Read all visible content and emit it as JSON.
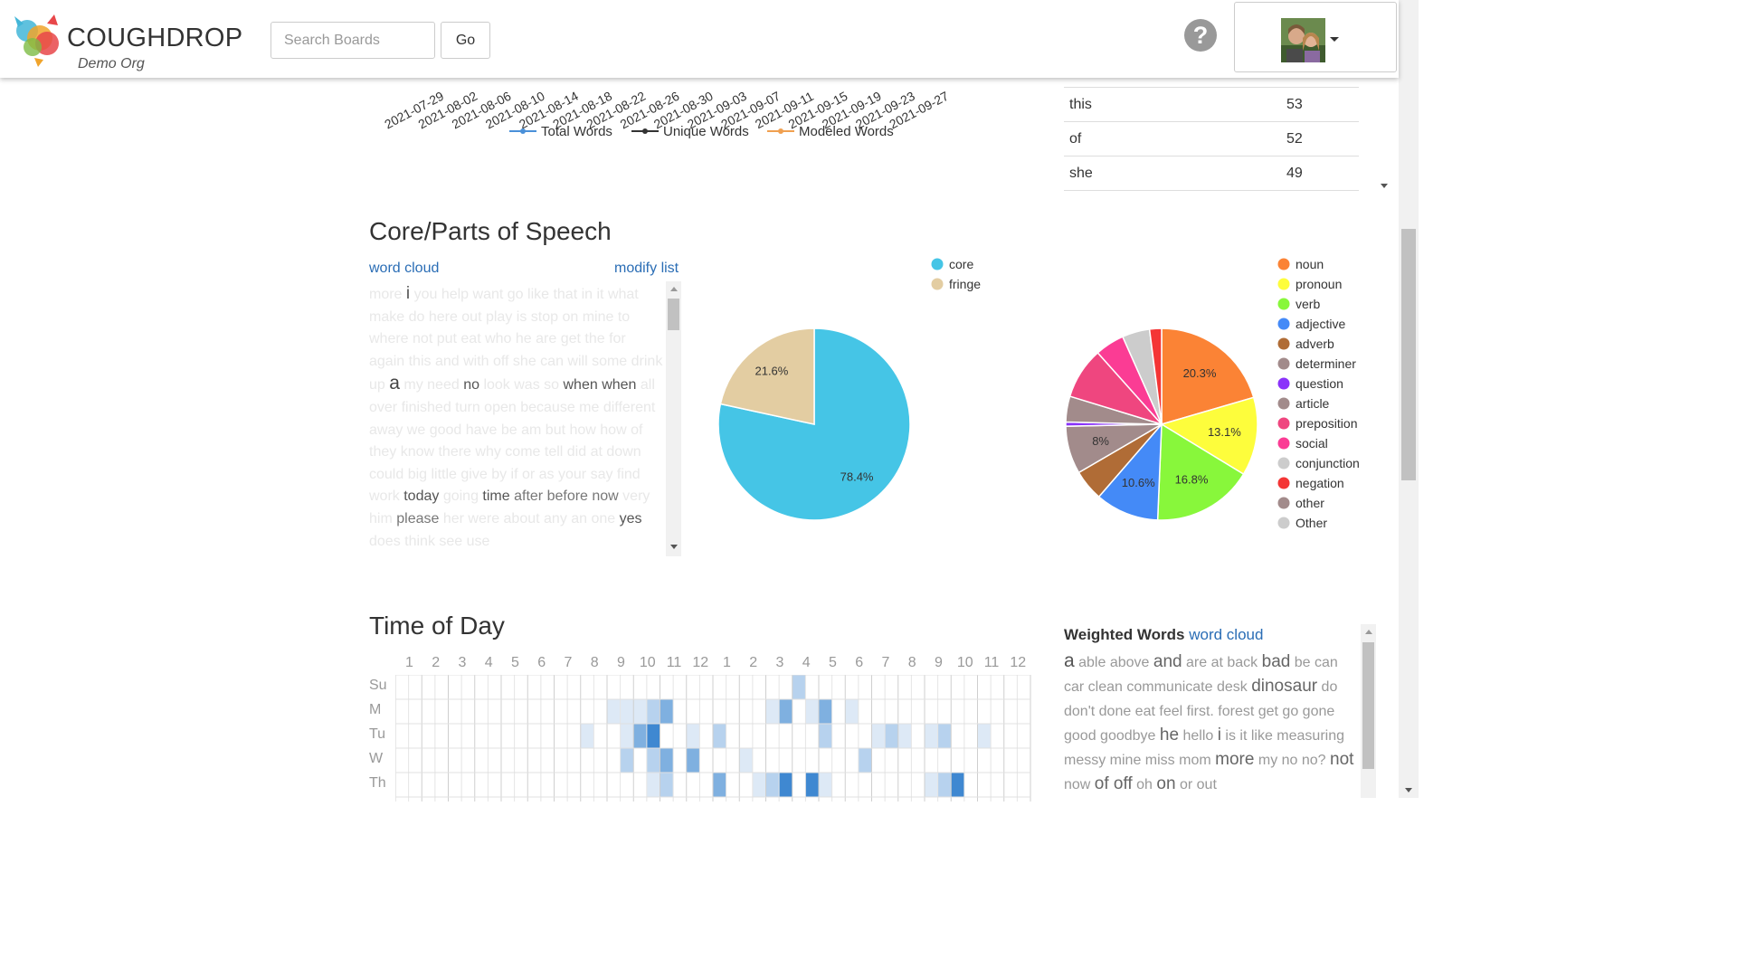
{
  "header": {
    "brand": "COUGHDROP",
    "org": "Demo Org",
    "search_placeholder": "Search Boards",
    "go_label": "Go",
    "help_glyph": "?",
    "help_icon": "question-circle-icon",
    "avatar_icon": "user-avatar"
  },
  "line_chart": {
    "dates": [
      "2021-07-29",
      "2021-08-02",
      "2021-08-06",
      "2021-08-10",
      "2021-08-14",
      "2021-08-18",
      "2021-08-22",
      "2021-08-26",
      "2021-08-30",
      "2021-09-03",
      "2021-09-07",
      "2021-09-11",
      "2021-09-15",
      "2021-09-19",
      "2021-09-23",
      "2021-09-27"
    ],
    "legend": [
      {
        "name": "Total Words",
        "color": "#4a90d9"
      },
      {
        "name": "Unique Words",
        "color": "#333333"
      },
      {
        "name": "Modeled Words",
        "color": "#f0a050"
      }
    ]
  },
  "word_table": {
    "rows": [
      {
        "word": "this",
        "count": "53"
      },
      {
        "word": "of",
        "count": "52"
      },
      {
        "word": "she",
        "count": "49"
      }
    ]
  },
  "core_section": {
    "title": "Core/Parts of Speech",
    "word_cloud_link": "word cloud",
    "modify_list_link": "modify list"
  },
  "chart_data": [
    {
      "type": "pie",
      "categories": [
        "core",
        "fringe"
      ],
      "values": [
        78.4,
        21.6
      ],
      "colors": [
        "#45c5e6",
        "#e3cda2"
      ],
      "labels": [
        "78.4%",
        "21.6%"
      ]
    },
    {
      "type": "pie",
      "categories": [
        "noun",
        "pronoun",
        "verb",
        "adjective",
        "adverb",
        "determiner",
        "question",
        "article",
        "preposition",
        "social",
        "conjunction",
        "negation",
        "other",
        "Other"
      ],
      "values": [
        20.3,
        13.1,
        16.8,
        10.6,
        5.2,
        8.0,
        0.7,
        4.3,
        8.6,
        4.9,
        4.6,
        2.0,
        0,
        0
      ],
      "colors": [
        "#fb8335",
        "#fdfd3c",
        "#88f73b",
        "#448af7",
        "#b06c36",
        "#a28b8b",
        "#8a33fa",
        "#a28b8b",
        "#ef467f",
        "#fb3c94",
        "#cccccc",
        "#f43535",
        "#a28b8b",
        "#cccccc"
      ],
      "labels": [
        "20.3%",
        "13.1%",
        "16.8%",
        "10.6%",
        "",
        "8%",
        "",
        "",
        "",
        "",
        "",
        "",
        "",
        ""
      ]
    }
  ],
  "time_of_day": {
    "title": "Time of Day",
    "hours": [
      "1",
      "2",
      "3",
      "4",
      "5",
      "6",
      "7",
      "8",
      "9",
      "10",
      "11",
      "12",
      "1",
      "2",
      "3",
      "4",
      "5",
      "6",
      "7",
      "8",
      "9",
      "10",
      "11",
      "12"
    ],
    "days": [
      "Su",
      "M",
      "Tu",
      "W",
      "Th"
    ]
  },
  "weighted_words": {
    "title": "Weighted Words",
    "link": "word cloud"
  }
}
